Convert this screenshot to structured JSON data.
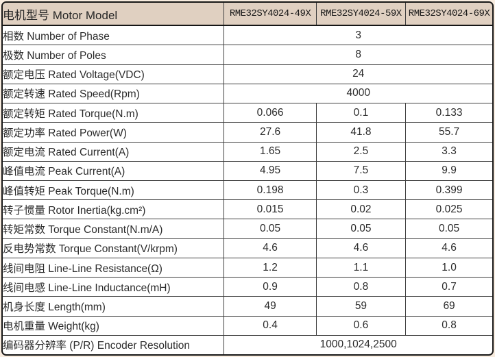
{
  "table": {
    "header": {
      "label": "电机型号 Motor Model",
      "models": [
        "RME32SY4024-49X",
        "RME32SY4024-59X",
        "RME32SY4024-69X"
      ]
    },
    "rows": [
      {
        "label": "相数 Number of Phase",
        "span": "3"
      },
      {
        "label": "极数 Number of Poles",
        "span": "8"
      },
      {
        "label": "额定电压 Rated Voltage(VDC)",
        "span": "24"
      },
      {
        "label": "额定转速 Rated Speed(Rpm)",
        "span": "4000"
      },
      {
        "label": "额定转矩 Rated Torque(N.m)",
        "values": [
          "0.066",
          "0.1",
          "0.133"
        ]
      },
      {
        "label": "额定功率 Rated Power(W)",
        "values": [
          "27.6",
          "41.8",
          "55.7"
        ]
      },
      {
        "label": "额定电流 Rated Current(A)",
        "values": [
          "1.65",
          "2.5",
          "3.3"
        ]
      },
      {
        "label": "峰值电流 Peak Current(A)",
        "values": [
          "4.95",
          "7.5",
          "9.9"
        ]
      },
      {
        "label": "峰值转矩 Peak Torque(N.m)",
        "values": [
          "0.198",
          "0.3",
          "0.399"
        ]
      },
      {
        "label": "转子惯量 Rotor Inertia(kg.cm²)",
        "values": [
          "0.015",
          "0.02",
          "0.025"
        ]
      },
      {
        "label": "转矩常数 Torque Constant(N.m/A)",
        "values": [
          "0.05",
          "0.05",
          "0.05"
        ]
      },
      {
        "label": "反电势常数 Torque Constant(V/krpm)",
        "values": [
          "4.6",
          "4.6",
          "4.6"
        ]
      },
      {
        "label": "线间电阻 Line-Line Resistance(Ω)",
        "values": [
          "1.2",
          "1.1",
          "1.0"
        ]
      },
      {
        "label": "线间电感 Line-Line Inductance(mH)",
        "values": [
          "0.9",
          "0.8",
          "0.7"
        ]
      },
      {
        "label": "机身长度 Length(mm)",
        "values": [
          "49",
          "59",
          "69"
        ]
      },
      {
        "label": "电机重量 Weight(kg)",
        "values": [
          "0.4",
          "0.6",
          "0.8"
        ]
      },
      {
        "label": "编码器分辨率 (P/R) Encoder Resolution",
        "span": "1000,1024,2500"
      }
    ],
    "colors": {
      "header_bg": "#e0d0c1",
      "page_bg": "#f8ecdf",
      "border": "#161616",
      "grid": "#3d3d3d",
      "text": "#2b2b2b"
    }
  }
}
